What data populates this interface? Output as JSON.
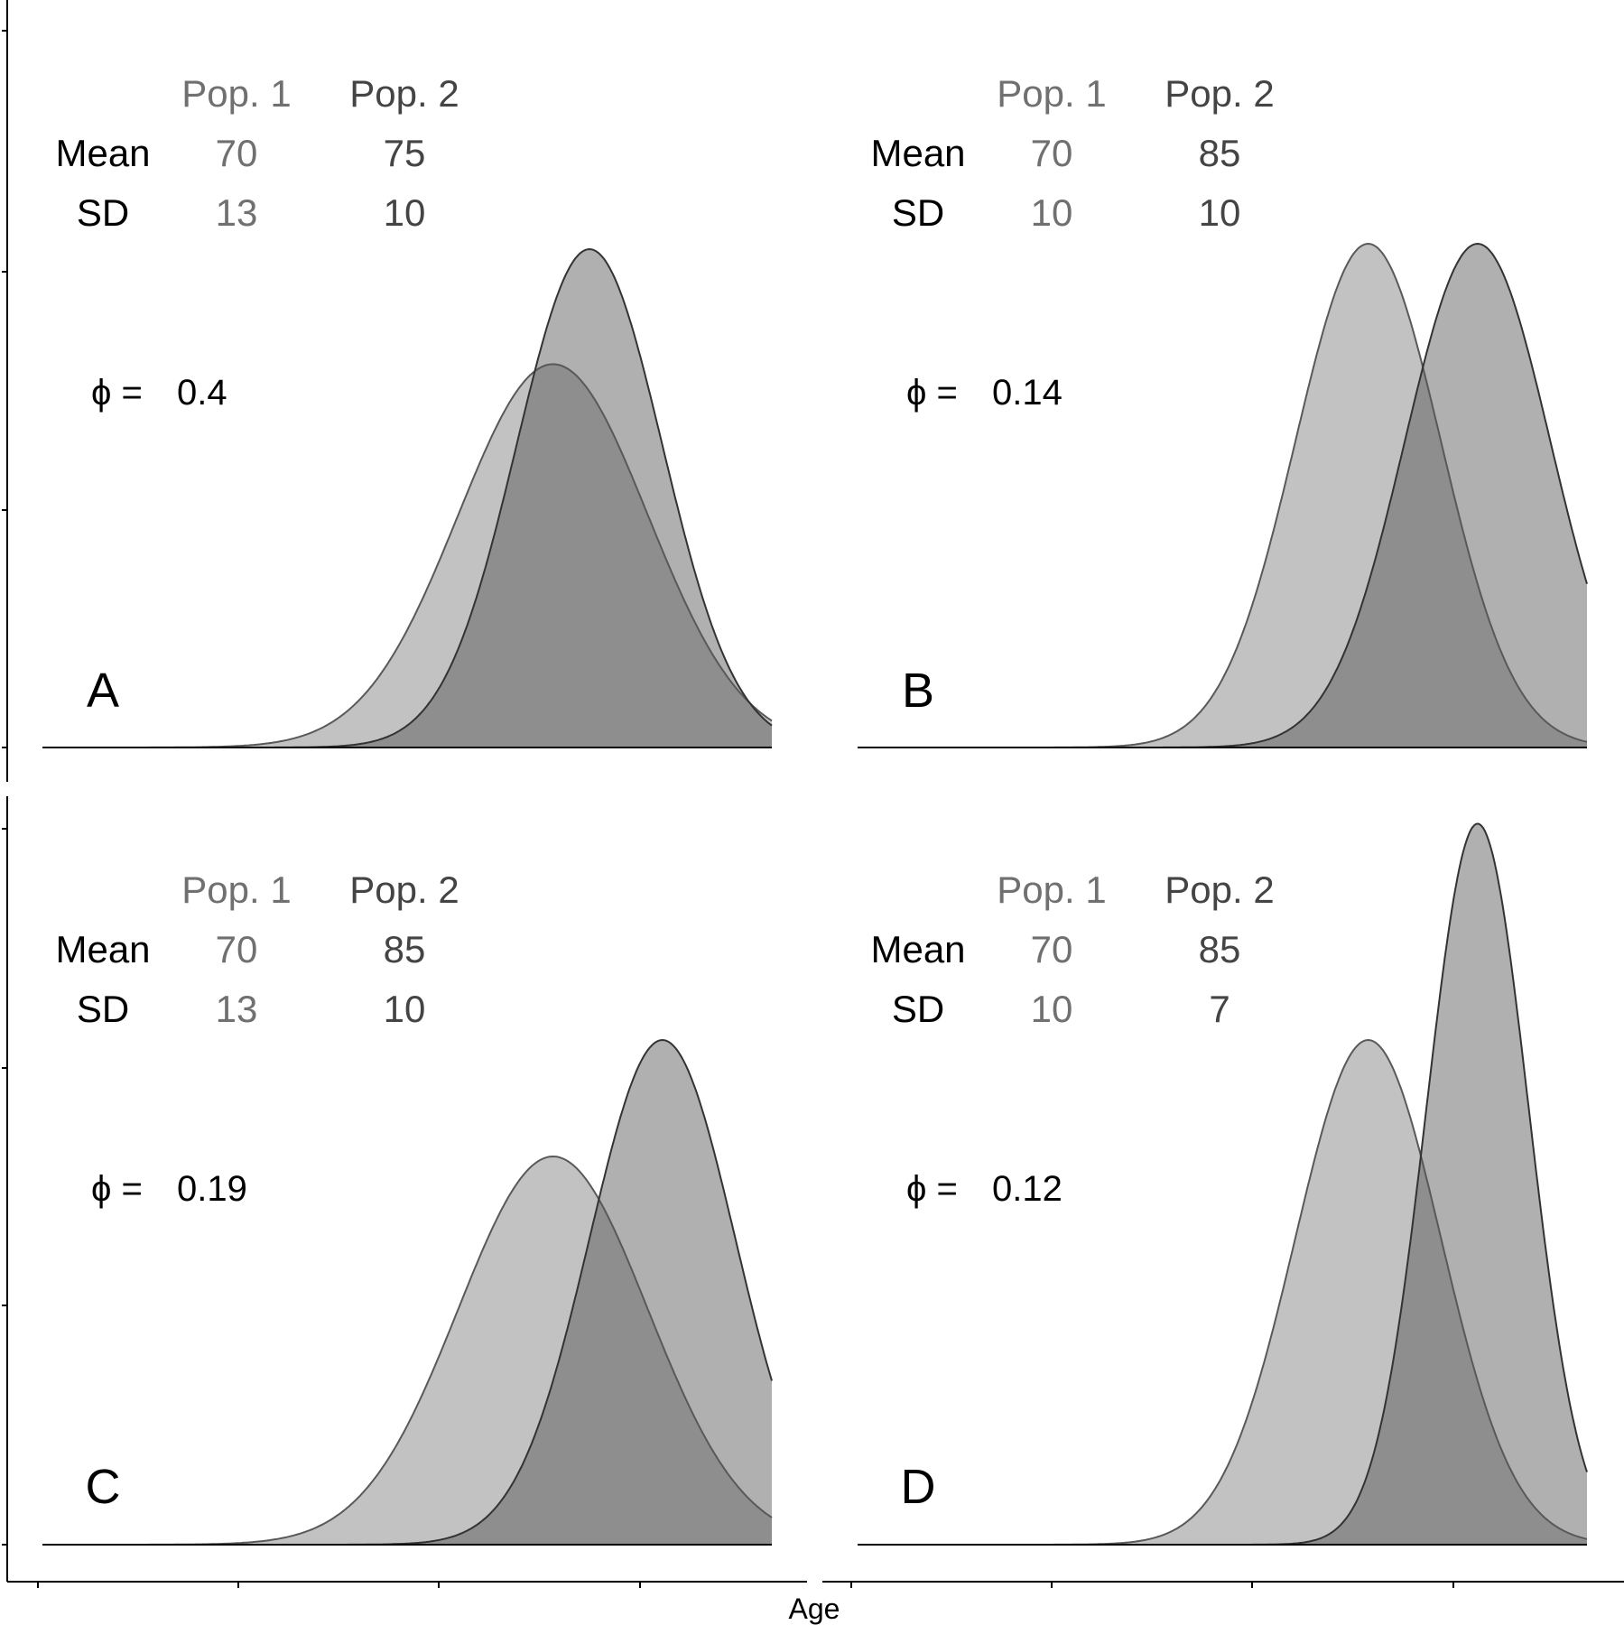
{
  "chart_data": [
    {
      "type": "area",
      "panel_label": "A",
      "header_pop1": "Pop. 1",
      "header_pop2": "Pop. 2",
      "row_mean": "Mean",
      "row_sd": "SD",
      "series": [
        {
          "name": "Pop. 1",
          "mean": 70,
          "sd": 13
        },
        {
          "name": "Pop. 2",
          "mean": 75,
          "sd": 10
        }
      ],
      "phi_label": "ϕ =",
      "phi_value": "0.4"
    },
    {
      "type": "area",
      "panel_label": "B",
      "header_pop1": "Pop. 1",
      "header_pop2": "Pop. 2",
      "row_mean": "Mean",
      "row_sd": "SD",
      "series": [
        {
          "name": "Pop. 1",
          "mean": 70,
          "sd": 10
        },
        {
          "name": "Pop. 2",
          "mean": 85,
          "sd": 10
        }
      ],
      "phi_label": "ϕ =",
      "phi_value": "0.14"
    },
    {
      "type": "area",
      "panel_label": "C",
      "header_pop1": "Pop. 1",
      "header_pop2": "Pop. 2",
      "row_mean": "Mean",
      "row_sd": "SD",
      "series": [
        {
          "name": "Pop. 1",
          "mean": 70,
          "sd": 13
        },
        {
          "name": "Pop. 2",
          "mean": 85,
          "sd": 10
        }
      ],
      "phi_label": "ϕ =",
      "phi_value": "0.19"
    },
    {
      "type": "area",
      "panel_label": "D",
      "header_pop1": "Pop. 1",
      "header_pop2": "Pop. 2",
      "row_mean": "Mean",
      "row_sd": "SD",
      "series": [
        {
          "name": "Pop. 1",
          "mean": 70,
          "sd": 10
        },
        {
          "name": "Pop. 2",
          "mean": 85,
          "sd": 7
        }
      ],
      "phi_label": "ϕ =",
      "phi_value": "0.12"
    }
  ],
  "axes": {
    "xlabel": "Age",
    "xlim": [
      0,
      100
    ],
    "colors": {
      "pop1_fill": "#c2c2c2",
      "pop2_fill": "#b0b0b0",
      "overlap_fill": "#8e8e8e",
      "pop1_stroke": "#595959",
      "pop2_stroke": "#333333",
      "axis": "#000000",
      "pop_text": "#707070",
      "pop2_text": "#444444",
      "label_text": "#000000"
    }
  }
}
